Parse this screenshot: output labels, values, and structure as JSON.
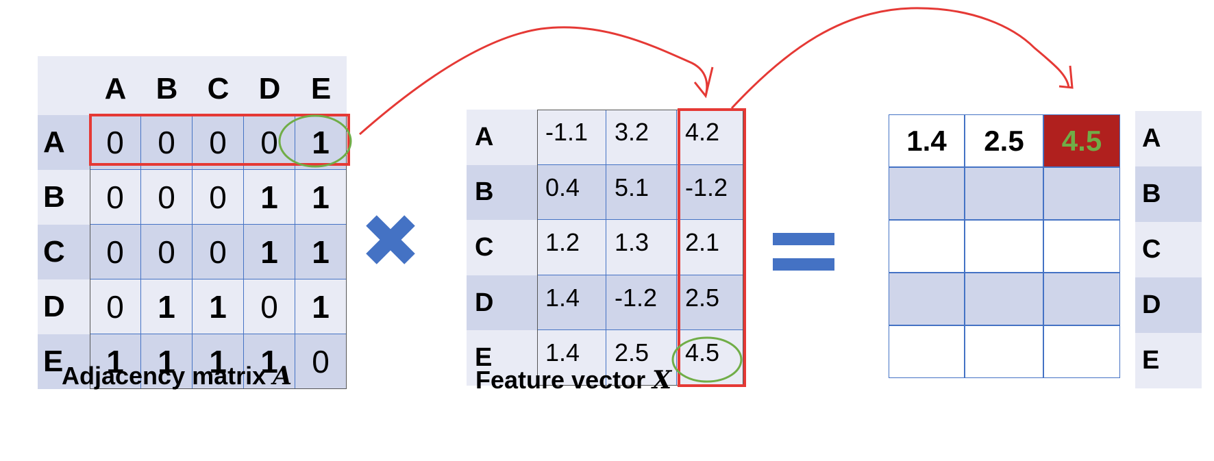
{
  "nodes": [
    "A",
    "B",
    "C",
    "D",
    "E"
  ],
  "adjacency": {
    "caption": "Adjacency matrix",
    "symbol": "A",
    "matrix": [
      [
        0,
        0,
        0,
        0,
        1
      ],
      [
        0,
        0,
        0,
        1,
        1
      ],
      [
        0,
        0,
        0,
        1,
        1
      ],
      [
        0,
        1,
        1,
        0,
        1
      ],
      [
        1,
        1,
        1,
        1,
        0
      ]
    ]
  },
  "features": {
    "caption": "Feature vector",
    "symbol": "X",
    "matrix": [
      [
        "-1.1",
        "3.2",
        "4.2"
      ],
      [
        "0.4",
        "5.1",
        "-1.2"
      ],
      [
        "1.2",
        "1.3",
        "2.1"
      ],
      [
        "1.4",
        "-1.2",
        "2.5"
      ],
      [
        "1.4",
        "2.5",
        "4.5"
      ]
    ]
  },
  "result": {
    "first_row": [
      "1.4",
      "2.5",
      "4.5"
    ]
  },
  "operators": {
    "multiply": "multiply-icon",
    "equals": "equals-icon"
  },
  "colors": {
    "header_bg": "#e9ebf5",
    "row_dark": "#cfd5ea",
    "row_light": "#e9ebf5",
    "grid_line": "#4472c4",
    "highlight_red": "#e53935",
    "circle_green": "#70ad47",
    "result_cell_bg": "#b0201e",
    "result_cell_text": "#70ad47",
    "operator_blue": "#4472c4"
  }
}
